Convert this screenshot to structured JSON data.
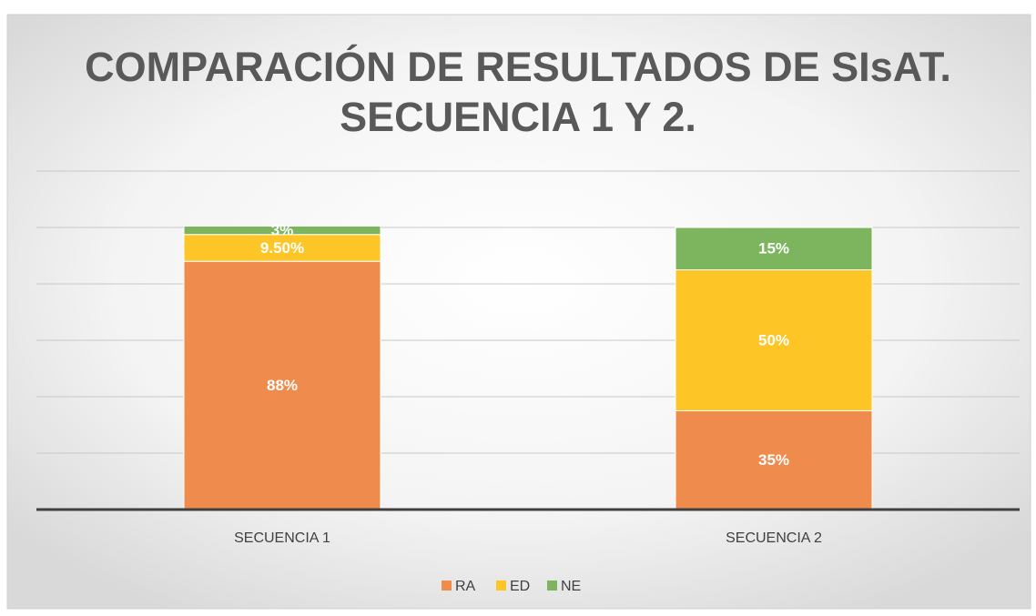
{
  "chart_data": {
    "type": "stacked_bar",
    "title": [
      "COMPARACIÓN DE RESULTADOS DE SIsAT.",
      "SECUENCIA 1 Y 2."
    ],
    "categories": [
      "SECUENCIA 1",
      "SECUENCIA 2"
    ],
    "series": [
      {
        "name": "RA",
        "color": "#ef8b4c",
        "values": [
          88,
          35
        ],
        "value_labels": [
          "88%",
          "35%"
        ]
      },
      {
        "name": "ED",
        "color": "#fdc526",
        "values": [
          9.5,
          50
        ],
        "value_labels": [
          "9.50%",
          "50%"
        ]
      },
      {
        "name": "NE",
        "color": "#7cb55e",
        "values": [
          3,
          15
        ],
        "value_labels": [
          "3%",
          "15%"
        ]
      }
    ],
    "ylim": [
      0,
      120
    ],
    "yticks": [
      0,
      20,
      40,
      60,
      80,
      100,
      120
    ],
    "grid": true,
    "legend": "bottom"
  }
}
